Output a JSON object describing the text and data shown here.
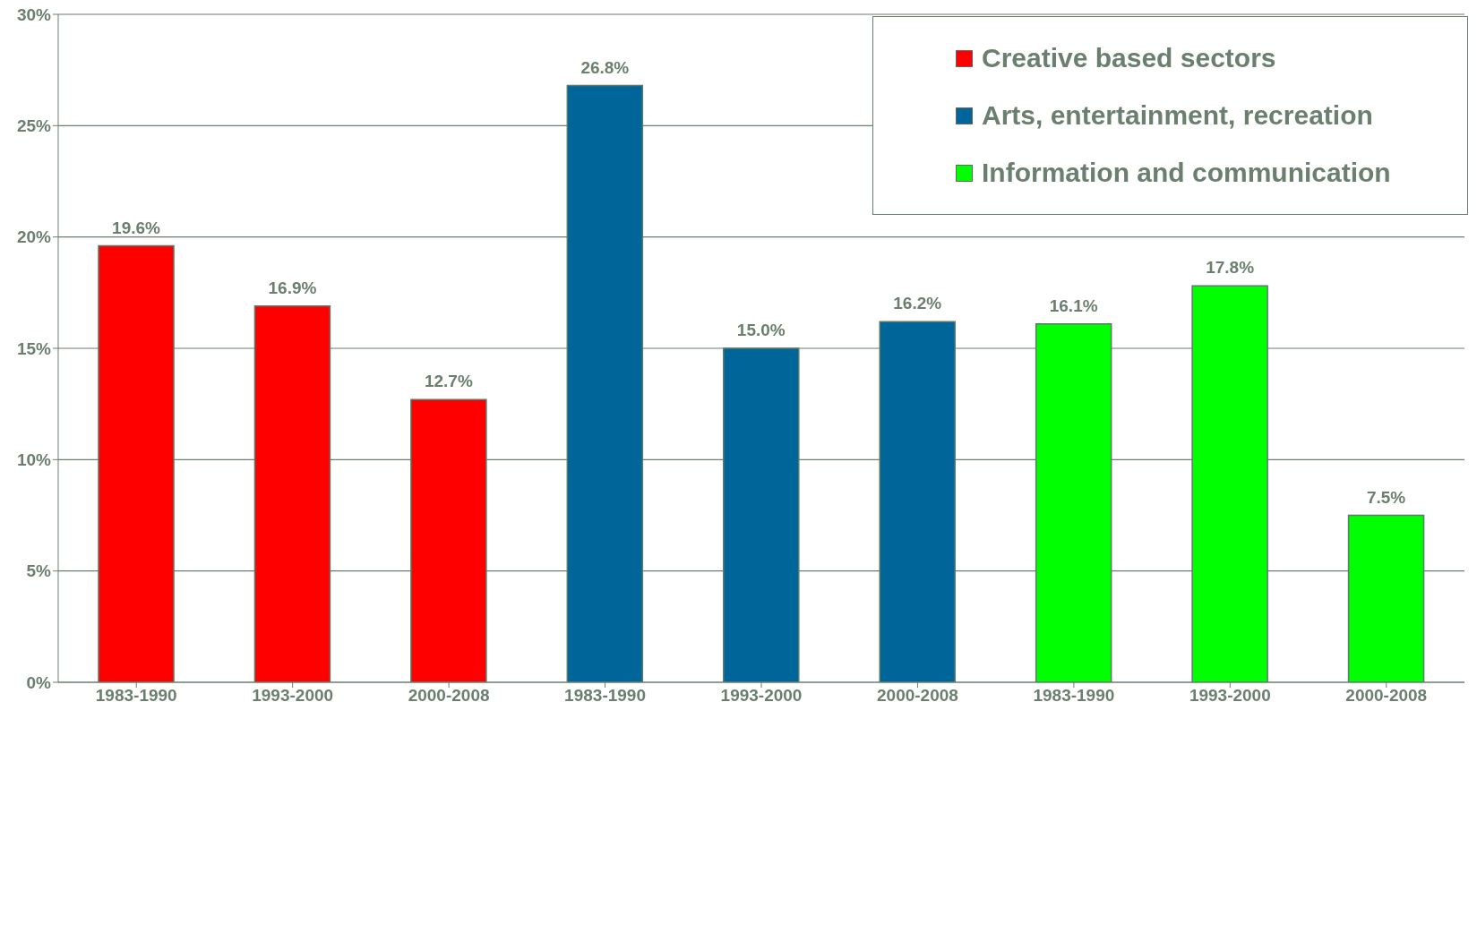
{
  "chart_data": {
    "type": "bar",
    "stacked": true,
    "categories": [
      "1983-1990",
      "1993-2000",
      "2000-2008",
      "1983-1990",
      "1993-2000",
      "2000-2008",
      "1983-1990",
      "1993-2000",
      "2000-2008"
    ],
    "series": [
      {
        "name": "Creative based sectors",
        "color": "#ff0000",
        "values": [
          19.6,
          16.9,
          12.7,
          null,
          null,
          null,
          null,
          null,
          null
        ],
        "value_labels": [
          "19.6%",
          "16.9%",
          "12.7%",
          null,
          null,
          null,
          null,
          null,
          null
        ]
      },
      {
        "name": "Arts, entertainment, recreation",
        "color": "#006699",
        "values": [
          null,
          null,
          null,
          26.8,
          15.0,
          16.2,
          null,
          null,
          null
        ],
        "value_labels": [
          null,
          null,
          null,
          "26.8%",
          "15.0%",
          "16.2%",
          null,
          null,
          null
        ]
      },
      {
        "name": "Information and communication",
        "color": "#00ff00",
        "values": [
          null,
          null,
          null,
          null,
          null,
          null,
          16.1,
          17.8,
          7.5
        ],
        "value_labels": [
          null,
          null,
          null,
          null,
          null,
          null,
          "16.1%",
          "17.8%",
          "7.5%"
        ]
      }
    ],
    "ylim": [
      0,
      30
    ],
    "yticks": [
      {
        "value": 0,
        "label": "0%"
      },
      {
        "value": 5,
        "label": "5%"
      },
      {
        "value": 10,
        "label": "10%"
      },
      {
        "value": 15,
        "label": "15%"
      },
      {
        "value": 20,
        "label": "20%"
      },
      {
        "value": 25,
        "label": "25%"
      },
      {
        "value": 30,
        "label": "30%"
      }
    ],
    "grid": "y",
    "legend": "top right"
  }
}
